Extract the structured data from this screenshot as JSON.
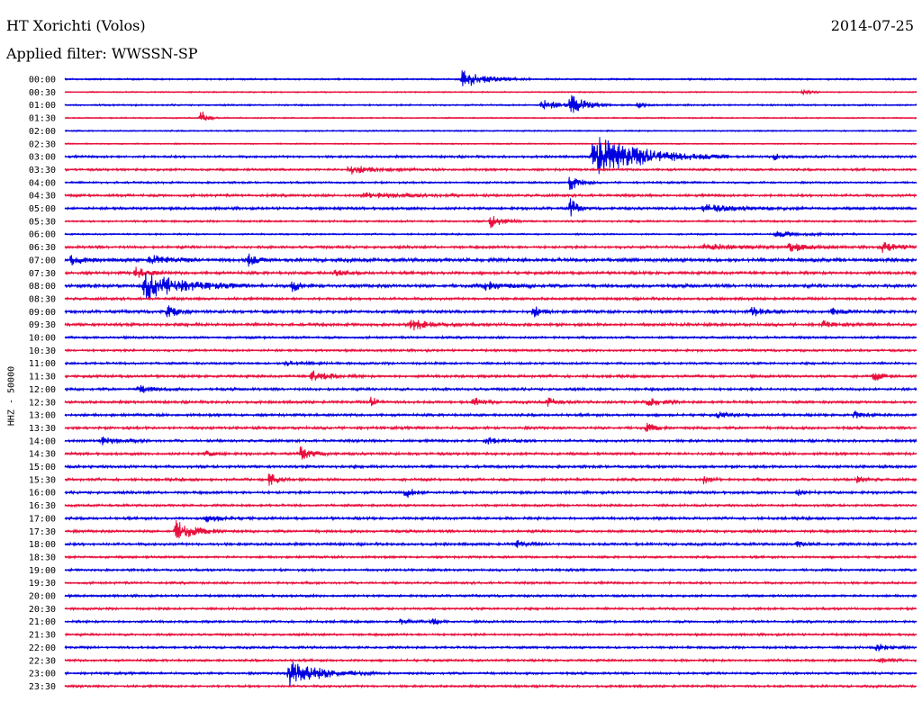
{
  "header": {
    "station": "HT Xorichti (Volos)",
    "date": "2014-07-25",
    "filter": "Applied filter: WWSSN-SP"
  },
  "colors": {
    "blue": "#0000e0",
    "red": "#e8103c"
  },
  "chart_data": {
    "type": "line",
    "ylabel": "HHZ - 50000",
    "row_labels": [
      "00:00",
      "00:30",
      "01:00",
      "01:30",
      "02:00",
      "02:30",
      "03:00",
      "03:30",
      "04:00",
      "04:30",
      "05:00",
      "05:30",
      "06:00",
      "06:30",
      "07:00",
      "07:30",
      "08:00",
      "08:30",
      "09:00",
      "09:30",
      "10:00",
      "10:30",
      "11:00",
      "11:30",
      "12:00",
      "12:30",
      "13:00",
      "13:30",
      "14:00",
      "14:30",
      "15:00",
      "15:30",
      "16:00",
      "16:30",
      "17:00",
      "17:30",
      "18:00",
      "18:30",
      "19:00",
      "19:30",
      "20:00",
      "20:30",
      "21:00",
      "21:30",
      "22:00",
      "22:30",
      "23:00",
      "23:30"
    ],
    "series_colors": [
      "blue",
      "red"
    ],
    "x_range_minutes": [
      0,
      30
    ],
    "noise_level": [
      1.0,
      0.8,
      1.0,
      0.8,
      0.8,
      0.8,
      1.4,
      1.4,
      1.2,
      1.6,
      1.6,
      1.2,
      1.0,
      1.6,
      2.2,
      1.8,
      2.0,
      1.6,
      1.8,
      1.8,
      1.4,
      1.4,
      1.4,
      1.6,
      1.6,
      1.6,
      1.6,
      1.6,
      1.6,
      1.6,
      1.6,
      1.6,
      1.6,
      1.4,
      1.6,
      1.6,
      1.6,
      1.4,
      1.4,
      1.4,
      1.4,
      1.4,
      1.4,
      1.4,
      1.4,
      1.4,
      1.4,
      1.4
    ],
    "events": [
      {
        "row": 0,
        "t": 14.0,
        "amp": 10,
        "dur": 0.8
      },
      {
        "row": 1,
        "t": 26.0,
        "amp": 3,
        "dur": 0.2
      },
      {
        "row": 2,
        "t": 17.8,
        "amp": 12,
        "dur": 0.5
      },
      {
        "row": 2,
        "t": 16.8,
        "amp": 6,
        "dur": 0.6
      },
      {
        "row": 2,
        "t": 20.2,
        "amp": 4,
        "dur": 0.2
      },
      {
        "row": 3,
        "t": 4.8,
        "amp": 9,
        "dur": 0.2
      },
      {
        "row": 6,
        "t": 18.6,
        "amp": 24,
        "dur": 1.6
      },
      {
        "row": 6,
        "t": 25.0,
        "amp": 4,
        "dur": 0.2
      },
      {
        "row": 7,
        "t": 10.0,
        "amp": 5,
        "dur": 0.8
      },
      {
        "row": 8,
        "t": 17.8,
        "amp": 10,
        "dur": 0.3
      },
      {
        "row": 9,
        "t": 10.5,
        "amp": 3,
        "dur": 1.5
      },
      {
        "row": 10,
        "t": 17.8,
        "amp": 12,
        "dur": 0.2
      },
      {
        "row": 10,
        "t": 22.5,
        "amp": 4,
        "dur": 1.2
      },
      {
        "row": 11,
        "t": 15.0,
        "amp": 7,
        "dur": 0.4
      },
      {
        "row": 12,
        "t": 25.0,
        "amp": 3,
        "dur": 1.0
      },
      {
        "row": 13,
        "t": 22.5,
        "amp": 4,
        "dur": 1.0
      },
      {
        "row": 13,
        "t": 25.5,
        "amp": 5,
        "dur": 0.6
      },
      {
        "row": 13,
        "t": 28.8,
        "amp": 6,
        "dur": 0.5
      },
      {
        "row": 14,
        "t": 0.2,
        "amp": 5,
        "dur": 0.4
      },
      {
        "row": 14,
        "t": 3.0,
        "amp": 5,
        "dur": 0.6
      },
      {
        "row": 14,
        "t": 6.4,
        "amp": 8,
        "dur": 0.3
      },
      {
        "row": 15,
        "t": 2.5,
        "amp": 6,
        "dur": 0.4
      },
      {
        "row": 15,
        "t": 9.5,
        "amp": 4,
        "dur": 0.3
      },
      {
        "row": 16,
        "t": 2.8,
        "amp": 16,
        "dur": 1.2
      },
      {
        "row": 16,
        "t": 8.0,
        "amp": 6,
        "dur": 0.3
      },
      {
        "row": 16,
        "t": 14.8,
        "amp": 4,
        "dur": 0.8
      },
      {
        "row": 18,
        "t": 3.6,
        "amp": 8,
        "dur": 0.3
      },
      {
        "row": 18,
        "t": 16.5,
        "amp": 6,
        "dur": 0.3
      },
      {
        "row": 18,
        "t": 24.2,
        "amp": 5,
        "dur": 0.4
      },
      {
        "row": 18,
        "t": 27.0,
        "amp": 4,
        "dur": 0.4
      },
      {
        "row": 19,
        "t": 12.2,
        "amp": 6,
        "dur": 0.6
      },
      {
        "row": 19,
        "t": 26.7,
        "amp": 4,
        "dur": 0.3
      },
      {
        "row": 22,
        "t": 7.8,
        "amp": 3,
        "dur": 0.6
      },
      {
        "row": 23,
        "t": 8.7,
        "amp": 6,
        "dur": 0.6
      },
      {
        "row": 23,
        "t": 28.5,
        "amp": 5,
        "dur": 0.3
      },
      {
        "row": 24,
        "t": 2.6,
        "amp": 4,
        "dur": 0.5
      },
      {
        "row": 25,
        "t": 10.8,
        "amp": 6,
        "dur": 0.2
      },
      {
        "row": 25,
        "t": 14.4,
        "amp": 5,
        "dur": 0.3
      },
      {
        "row": 25,
        "t": 17.0,
        "amp": 5,
        "dur": 0.3
      },
      {
        "row": 25,
        "t": 20.5,
        "amp": 6,
        "dur": 0.4
      },
      {
        "row": 26,
        "t": 23.0,
        "amp": 3,
        "dur": 0.4
      },
      {
        "row": 26,
        "t": 27.8,
        "amp": 4,
        "dur": 0.3
      },
      {
        "row": 27,
        "t": 20.5,
        "amp": 5,
        "dur": 0.3
      },
      {
        "row": 28,
        "t": 1.2,
        "amp": 5,
        "dur": 0.6
      },
      {
        "row": 28,
        "t": 14.8,
        "amp": 4,
        "dur": 0.6
      },
      {
        "row": 29,
        "t": 8.3,
        "amp": 7,
        "dur": 0.4
      },
      {
        "row": 29,
        "t": 5.0,
        "amp": 3,
        "dur": 0.3
      },
      {
        "row": 31,
        "t": 7.2,
        "amp": 8,
        "dur": 0.3
      },
      {
        "row": 31,
        "t": 22.5,
        "amp": 4,
        "dur": 0.3
      },
      {
        "row": 31,
        "t": 27.9,
        "amp": 4,
        "dur": 0.3
      },
      {
        "row": 32,
        "t": 12.0,
        "amp": 6,
        "dur": 0.3
      },
      {
        "row": 32,
        "t": 25.8,
        "amp": 3,
        "dur": 0.3
      },
      {
        "row": 34,
        "t": 5.0,
        "amp": 4,
        "dur": 0.6
      },
      {
        "row": 35,
        "t": 3.9,
        "amp": 12,
        "dur": 0.6
      },
      {
        "row": 36,
        "t": 15.9,
        "amp": 4,
        "dur": 0.3
      },
      {
        "row": 36,
        "t": 25.8,
        "amp": 3,
        "dur": 0.3
      },
      {
        "row": 42,
        "t": 11.8,
        "amp": 3,
        "dur": 0.3
      },
      {
        "row": 42,
        "t": 12.9,
        "amp": 6,
        "dur": 0.2
      },
      {
        "row": 44,
        "t": 28.6,
        "amp": 4,
        "dur": 0.4
      },
      {
        "row": 45,
        "t": 28.7,
        "amp": 3,
        "dur": 0.3
      },
      {
        "row": 46,
        "t": 7.9,
        "amp": 16,
        "dur": 1.0
      }
    ]
  }
}
